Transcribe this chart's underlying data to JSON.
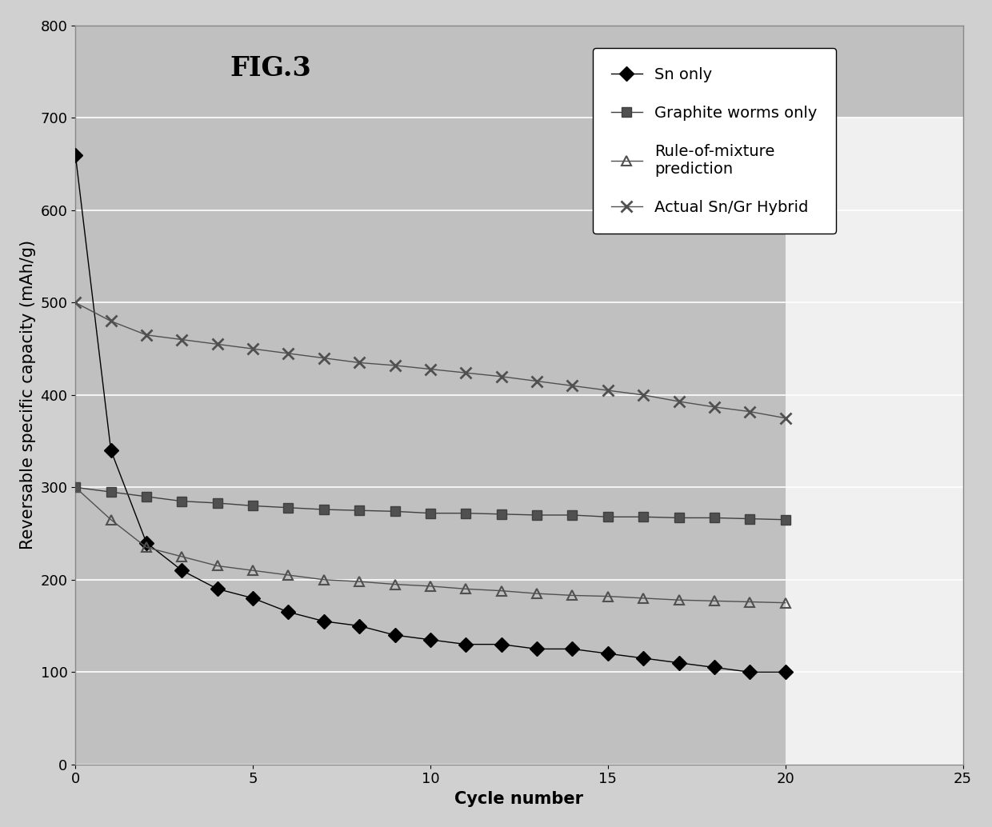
{
  "title": "FIG.3",
  "xlabel": "Cycle number",
  "ylabel": "Reversable specific capacity (mAh/g)",
  "xlim": [
    0,
    25
  ],
  "ylim": [
    0,
    800
  ],
  "xticks": [
    0,
    5,
    10,
    15,
    20,
    25
  ],
  "yticks": [
    0,
    100,
    200,
    300,
    400,
    500,
    600,
    700,
    800
  ],
  "plot_bg_color": "#b8b8b8",
  "figure_bg_color": "#d8d8d8",
  "outer_box_color": "#ffffff",
  "series_order": [
    "sn_only",
    "graphite_worms",
    "rule_of_mixture",
    "actual_hybrid"
  ],
  "series": {
    "sn_only": {
      "label": "Sn only",
      "marker": "D",
      "color": "#000000",
      "markersize": 9,
      "markerfacecolor": "#000000",
      "markeredgecolor": "#000000",
      "x": [
        0,
        1,
        2,
        3,
        4,
        5,
        6,
        7,
        8,
        9,
        10,
        11,
        12,
        13,
        14,
        15,
        16,
        17,
        18,
        19,
        20
      ],
      "y": [
        660,
        340,
        240,
        210,
        190,
        180,
        165,
        155,
        150,
        140,
        135,
        130,
        130,
        125,
        125,
        120,
        115,
        110,
        105,
        100,
        100
      ]
    },
    "graphite_worms": {
      "label": "Graphite worms only",
      "marker": "s",
      "color": "#404040",
      "markersize": 8,
      "markerfacecolor": "#505050",
      "markeredgecolor": "#404040",
      "x": [
        0,
        1,
        2,
        3,
        4,
        5,
        6,
        7,
        8,
        9,
        10,
        11,
        12,
        13,
        14,
        15,
        16,
        17,
        18,
        19,
        20
      ],
      "y": [
        300,
        295,
        290,
        285,
        283,
        280,
        278,
        276,
        275,
        274,
        272,
        272,
        271,
        270,
        270,
        268,
        268,
        267,
        267,
        266,
        265
      ]
    },
    "rule_of_mixture": {
      "label": "Rule-of-mixture\nprediction",
      "marker": "^",
      "color": "#505050",
      "markersize": 9,
      "markerfacecolor": "none",
      "markeredgecolor": "#505050",
      "x": [
        0,
        1,
        2,
        3,
        4,
        5,
        6,
        7,
        8,
        9,
        10,
        11,
        12,
        13,
        14,
        15,
        16,
        17,
        18,
        19,
        20
      ],
      "y": [
        300,
        265,
        235,
        225,
        215,
        210,
        205,
        200,
        198,
        195,
        193,
        190,
        188,
        185,
        183,
        182,
        180,
        178,
        177,
        176,
        175
      ]
    },
    "actual_hybrid": {
      "label": "Actual Sn/Gr Hybrid",
      "marker": "x",
      "color": "#505050",
      "markersize": 10,
      "markerfacecolor": "none",
      "markeredgecolor": "#505050",
      "x": [
        0,
        1,
        2,
        3,
        4,
        5,
        6,
        7,
        8,
        9,
        10,
        11,
        12,
        13,
        14,
        15,
        16,
        17,
        18,
        19,
        20
      ],
      "y": [
        500,
        480,
        465,
        460,
        455,
        450,
        445,
        440,
        435,
        432,
        428,
        424,
        420,
        415,
        410,
        405,
        400,
        393,
        387,
        382,
        375
      ]
    }
  },
  "title_fontsize": 24,
  "label_fontsize": 15,
  "tick_fontsize": 13,
  "legend_fontsize": 14
}
